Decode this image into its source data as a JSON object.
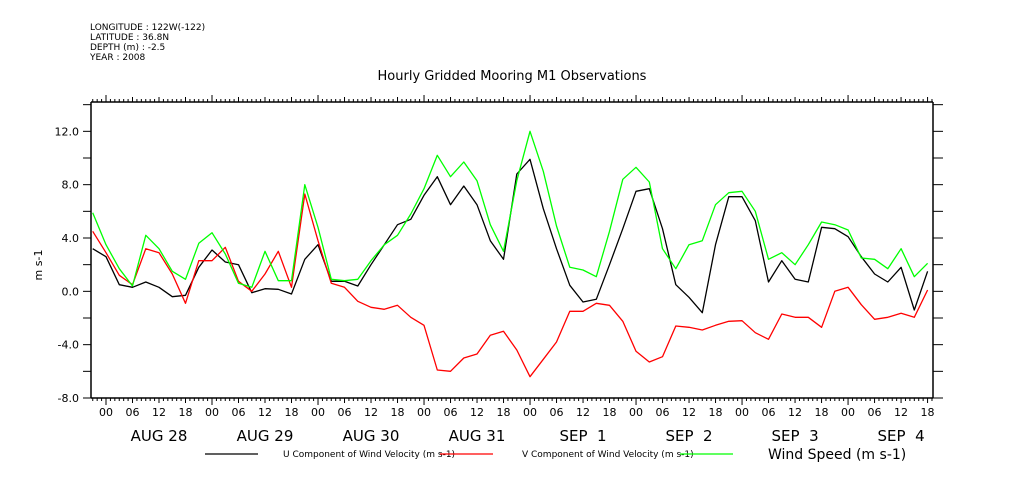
{
  "header": {
    "longitude": "LONGITUDE : 122W(-122)",
    "latitude": "LATITUDE : 36.8N",
    "depth": "DEPTH (m) : -2.5",
    "year": "YEAR : 2008"
  },
  "chart_data": {
    "type": "line",
    "title": "Hourly Gridded Mooring M1 Observations",
    "xlabel": "",
    "ylabel": "m s-1",
    "x_unit": "hours since AUG 28 00",
    "xlim": [
      -3.3,
      187.5
    ],
    "ylim": [
      -8.0,
      14.2
    ],
    "yticks": [
      -8.0,
      -4.0,
      0.0,
      4.0,
      8.0,
      12.0
    ],
    "ytick_labels": [
      "-8.0",
      "-4.0",
      "0.0",
      "4.0",
      "8.0",
      "12.0"
    ],
    "hour_tick_labels": [
      "00",
      "06",
      "12",
      "18",
      "00",
      "06",
      "12",
      "18",
      "00",
      "06",
      "12",
      "18",
      "00",
      "06",
      "12",
      "18",
      "00",
      "06",
      "12",
      "18",
      "00",
      "06",
      "12",
      "18",
      "00",
      "06",
      "12",
      "18",
      "00",
      "06",
      "12",
      "18"
    ],
    "day_labels": [
      "AUG 28",
      "AUG 29",
      "AUG 30",
      "AUG 31",
      "SEP  1",
      "SEP  2",
      "SEP  3",
      "SEP  4"
    ],
    "legend_position": "bottom",
    "x": [
      -3,
      0,
      3,
      6,
      9,
      12,
      15,
      18,
      21,
      24,
      27,
      30,
      33,
      36,
      39,
      42,
      45,
      48,
      51,
      54,
      57,
      60,
      63,
      66,
      69,
      72,
      75,
      78,
      81,
      84,
      87,
      90,
      93,
      96,
      99,
      102,
      105,
      108,
      111,
      114,
      117,
      120,
      123,
      126,
      129,
      132,
      135,
      138,
      141,
      144,
      147,
      150,
      153,
      156,
      159,
      162,
      165,
      168,
      171,
      174,
      177,
      180,
      183,
      186
    ],
    "series": [
      {
        "name": "U Component of Wind Velocity (m s-1)",
        "color": "#000000",
        "values": [
          3.2,
          2.6,
          0.5,
          0.3,
          0.7,
          0.3,
          -0.4,
          -0.3,
          1.8,
          3.1,
          2.2,
          2.0,
          -0.1,
          0.2,
          0.15,
          -0.2,
          2.4,
          3.5,
          0.75,
          0.75,
          0.4,
          2.0,
          3.5,
          5.0,
          5.4,
          7.2,
          8.6,
          6.5,
          7.9,
          6.5,
          3.8,
          2.4,
          8.8,
          9.9,
          6.2,
          3.2,
          0.45,
          -0.8,
          -0.6,
          2.0,
          4.7,
          7.5,
          7.7,
          4.7,
          0.5,
          -0.45,
          -1.6,
          3.5,
          7.1,
          7.1,
          5.3,
          0.7,
          2.3,
          0.9,
          0.7,
          4.8,
          4.7,
          4.1,
          2.6,
          1.3,
          0.7,
          1.8,
          -1.4,
          1.5
        ]
      },
      {
        "name": "V Component of Wind Velocity (m s-1)",
        "color": "#ff0000",
        "values": [
          4.5,
          2.9,
          1.2,
          0.5,
          3.2,
          2.9,
          1.3,
          -0.9,
          2.3,
          2.3,
          3.3,
          0.75,
          0.0,
          1.3,
          3.0,
          0.3,
          7.3,
          3.8,
          0.6,
          0.3,
          -0.75,
          -1.2,
          -1.35,
          -1.05,
          -1.95,
          -2.55,
          -5.9,
          -6.0,
          -5.0,
          -4.7,
          -3.3,
          -3.0,
          -4.4,
          -6.4,
          -5.1,
          -3.8,
          -1.5,
          -1.5,
          -0.9,
          -1.05,
          -2.25,
          -4.5,
          -5.3,
          -4.9,
          -2.6,
          -2.7,
          -2.9,
          -2.55,
          -2.25,
          -2.2,
          -3.1,
          -3.6,
          -1.7,
          -1.95,
          -1.95,
          -2.7,
          0.0,
          0.3,
          -1.0,
          -2.1,
          -1.95,
          -1.65,
          -1.95,
          0.1
        ]
      },
      {
        "name": "Wind Speed (m s-1)",
        "color": "#00ff00",
        "values": [
          5.9,
          3.5,
          1.7,
          0.4,
          4.2,
          3.2,
          1.5,
          0.9,
          3.6,
          4.4,
          2.8,
          0.6,
          0.3,
          3.0,
          0.8,
          0.8,
          8.0,
          4.8,
          0.9,
          0.8,
          0.9,
          2.3,
          3.5,
          4.2,
          5.8,
          7.7,
          10.2,
          8.6,
          9.7,
          8.3,
          5.0,
          3.0,
          8.3,
          12.0,
          9.0,
          4.9,
          1.8,
          1.6,
          1.1,
          4.5,
          8.4,
          9.3,
          8.2,
          3.2,
          1.7,
          3.5,
          3.8,
          6.5,
          7.4,
          7.5,
          6.0,
          2.4,
          2.9,
          2.0,
          3.5,
          5.2,
          5.0,
          4.6,
          2.5,
          2.4,
          1.7,
          3.2,
          1.1,
          2.1
        ]
      }
    ]
  }
}
